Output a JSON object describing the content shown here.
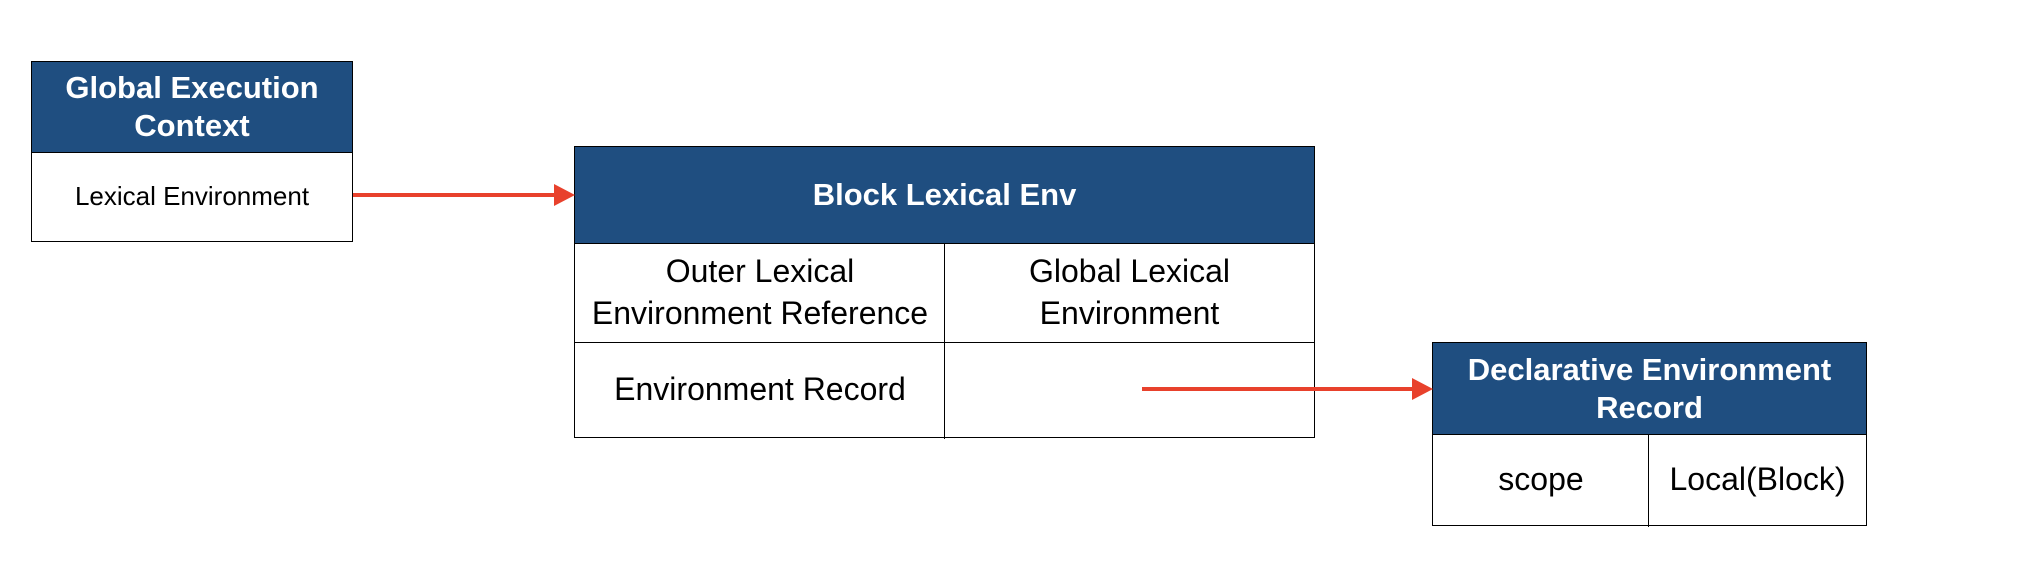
{
  "colors": {
    "header_fill": "#1f4e80",
    "header_text": "#ffffff",
    "arrow": "#e8412c",
    "border": "#000000"
  },
  "global_execution_context": {
    "title": "Global Execution Context",
    "row": "Lexical Environment"
  },
  "block_lexical_env": {
    "title": "Block Lexical Env",
    "outer_ref_label": "Outer Lexical Environment Reference",
    "outer_ref_value": "Global Lexical Environment",
    "env_record_label": "Environment Record",
    "env_record_value": ""
  },
  "declarative_environment_record": {
    "title": "Declarative Environment Record",
    "key": "scope",
    "value": "Local(Block)"
  },
  "connectors": [
    {
      "from": "Lexical Environment",
      "to": "Block Lexical Env"
    },
    {
      "from": "Environment Record",
      "to": "Declarative Environment Record"
    }
  ]
}
